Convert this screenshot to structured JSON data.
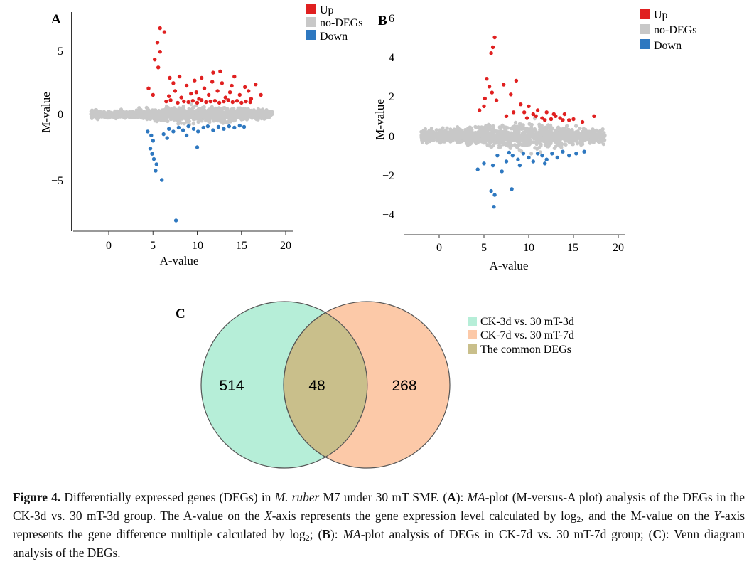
{
  "colors": {
    "up": "#e02020",
    "nodeg": "#c8c8c8",
    "down": "#2e78c0",
    "venn_a": "#b6eed8",
    "venn_b": "#fcc9a8",
    "venn_common": "#c9bf8b"
  },
  "chart_data": [
    {
      "type": "scatter",
      "panel": "A",
      "xlabel": "A-value",
      "ylabel": "M-value",
      "xlim": [
        -4,
        20
      ],
      "ylim": [
        -9,
        8
      ],
      "xticks": [
        "0",
        "5",
        "10",
        "15",
        "20"
      ],
      "yticks": [
        "5",
        "0",
        "−5"
      ],
      "legend": [
        "Up",
        "no-DEGs",
        "Down"
      ],
      "legend_position": "top-right",
      "series": [
        {
          "name": "Up",
          "points": [
            [
              5.8,
              6.6
            ],
            [
              6.3,
              6.3
            ],
            [
              5.5,
              5.5
            ],
            [
              5.8,
              4.8
            ],
            [
              5.2,
              4.2
            ],
            [
              5.6,
              3.6
            ],
            [
              4.5,
              2.0
            ],
            [
              5.0,
              1.5
            ],
            [
              6.8,
              1.4
            ],
            [
              7.5,
              1.8
            ],
            [
              8.2,
              1.3
            ],
            [
              8.8,
              2.2
            ],
            [
              9.3,
              1.6
            ],
            [
              9.7,
              2.6
            ],
            [
              10.2,
              1.2
            ],
            [
              10.8,
              2.0
            ],
            [
              11.3,
              1.5
            ],
            [
              11.8,
              3.2
            ],
            [
              12.3,
              1.8
            ],
            [
              12.8,
              2.4
            ],
            [
              13.2,
              1.3
            ],
            [
              13.7,
              1.7
            ],
            [
              14.2,
              2.9
            ],
            [
              14.8,
              1.5
            ],
            [
              15.4,
              2.1
            ],
            [
              16.1,
              1.2
            ],
            [
              16.6,
              2.3
            ],
            [
              17.2,
              1.5
            ],
            [
              6.5,
              1.0
            ],
            [
              7.0,
              1.1
            ],
            [
              7.8,
              0.9
            ],
            [
              8.5,
              1.0
            ],
            [
              9.0,
              0.95
            ],
            [
              9.5,
              1.05
            ],
            [
              10.0,
              0.9
            ],
            [
              10.5,
              1.1
            ],
            [
              11.0,
              0.95
            ],
            [
              11.5,
              1.0
            ],
            [
              12.0,
              1.05
            ],
            [
              12.5,
              0.9
            ],
            [
              13.0,
              1.0
            ],
            [
              13.5,
              1.1
            ],
            [
              14.0,
              0.95
            ],
            [
              14.5,
              1.05
            ],
            [
              15.0,
              0.9
            ],
            [
              15.5,
              1.0
            ],
            [
              16.0,
              0.95
            ],
            [
              8.0,
              2.9
            ],
            [
              10.5,
              2.8
            ],
            [
              12.6,
              3.3
            ],
            [
              9.9,
              1.7
            ],
            [
              11.7,
              2.5
            ],
            [
              7.3,
              2.4
            ],
            [
              13.9,
              2.2
            ],
            [
              15.8,
              1.8
            ],
            [
              6.9,
              2.8
            ]
          ]
        },
        {
          "name": "Down",
          "points": [
            [
              4.4,
              -1.3
            ],
            [
              4.8,
              -1.6
            ],
            [
              5.0,
              -2.0
            ],
            [
              4.7,
              -2.6
            ],
            [
              4.9,
              -3.0
            ],
            [
              5.1,
              -3.4
            ],
            [
              5.4,
              -3.8
            ],
            [
              5.3,
              -4.3
            ],
            [
              6.0,
              -5.0
            ],
            [
              7.6,
              -8.1
            ],
            [
              6.2,
              -1.5
            ],
            [
              6.8,
              -1.1
            ],
            [
              7.3,
              -1.3
            ],
            [
              7.9,
              -1.0
            ],
            [
              8.4,
              -1.2
            ],
            [
              9.0,
              -0.9
            ],
            [
              9.6,
              -1.1
            ],
            [
              10.1,
              -1.3
            ],
            [
              10.7,
              -1.0
            ],
            [
              11.2,
              -0.9
            ],
            [
              11.8,
              -1.2
            ],
            [
              12.4,
              -0.95
            ],
            [
              13.0,
              -1.1
            ],
            [
              13.6,
              -0.9
            ],
            [
              14.2,
              -1.0
            ],
            [
              14.8,
              -0.85
            ],
            [
              15.3,
              -0.95
            ],
            [
              10.0,
              -2.5
            ],
            [
              8.8,
              -1.6
            ],
            [
              6.6,
              -1.8
            ]
          ]
        }
      ]
    },
    {
      "type": "scatter",
      "panel": "B",
      "xlabel": "A-value",
      "ylabel": "M-value",
      "xlim": [
        -4,
        20
      ],
      "ylim": [
        -5,
        6
      ],
      "xticks": [
        "0",
        "5",
        "10",
        "15",
        "20"
      ],
      "yticks": [
        "6",
        "4",
        "2",
        "0",
        "−2",
        "−4"
      ],
      "legend": [
        "Up",
        "no-DEGs",
        "Down"
      ],
      "legend_position": "top-right",
      "series": [
        {
          "name": "Up",
          "points": [
            [
              6.2,
              5.0
            ],
            [
              6.0,
              4.5
            ],
            [
              5.8,
              4.2
            ],
            [
              5.3,
              2.9
            ],
            [
              5.6,
              2.5
            ],
            [
              5.9,
              2.2
            ],
            [
              5.1,
              1.9
            ],
            [
              6.4,
              1.8
            ],
            [
              7.2,
              2.6
            ],
            [
              8.0,
              2.1
            ],
            [
              8.6,
              2.8
            ],
            [
              9.1,
              1.6
            ],
            [
              9.5,
              1.2
            ],
            [
              10.0,
              1.5
            ],
            [
              10.5,
              1.1
            ],
            [
              11.0,
              1.3
            ],
            [
              11.5,
              0.9
            ],
            [
              12.0,
              1.2
            ],
            [
              12.5,
              0.85
            ],
            [
              13.0,
              1.0
            ],
            [
              13.5,
              0.9
            ],
            [
              14.0,
              1.1
            ],
            [
              14.5,
              0.8
            ],
            [
              15.0,
              0.85
            ],
            [
              16.0,
              0.7
            ],
            [
              17.3,
              1.0
            ],
            [
              4.5,
              1.3
            ],
            [
              5.0,
              1.5
            ],
            [
              7.5,
              1.0
            ],
            [
              8.3,
              1.2
            ],
            [
              9.8,
              0.9
            ],
            [
              10.8,
              1.0
            ],
            [
              11.8,
              0.8
            ],
            [
              12.8,
              1.1
            ],
            [
              13.8,
              0.8
            ]
          ]
        },
        {
          "name": "Down",
          "points": [
            [
              5.8,
              -2.8
            ],
            [
              6.2,
              -3.0
            ],
            [
              6.1,
              -3.6
            ],
            [
              8.1,
              -2.7
            ],
            [
              4.3,
              -1.7
            ],
            [
              5.0,
              -1.4
            ],
            [
              6.0,
              -1.5
            ],
            [
              7.0,
              -1.8
            ],
            [
              7.5,
              -1.3
            ],
            [
              8.2,
              -1.0
            ],
            [
              8.8,
              -1.2
            ],
            [
              9.4,
              -0.9
            ],
            [
              10.0,
              -1.1
            ],
            [
              10.5,
              -1.3
            ],
            [
              11.0,
              -0.9
            ],
            [
              11.5,
              -1.0
            ],
            [
              12.0,
              -1.2
            ],
            [
              12.6,
              -0.9
            ],
            [
              13.2,
              -1.1
            ],
            [
              13.8,
              -0.8
            ],
            [
              14.5,
              -1.0
            ],
            [
              15.3,
              -0.9
            ],
            [
              16.2,
              -0.8
            ],
            [
              9.0,
              -1.5
            ],
            [
              11.8,
              -1.4
            ],
            [
              6.5,
              -1.0
            ],
            [
              7.8,
              -0.85
            ]
          ]
        }
      ]
    },
    {
      "type": "venn",
      "panel": "C",
      "sets": [
        {
          "label": "CK-3d vs. 30 mT-3d",
          "only": "514"
        },
        {
          "label": "CK-7d vs. 30 mT-7d",
          "only": "268"
        }
      ],
      "common_label": "The common DEGs",
      "common": "48",
      "legend_position": "right"
    }
  ],
  "caption": {
    "label": "Figure 4.",
    "s1": " Differentially expressed genes (DEGs) in ",
    "species": "M. ruber",
    "s2": " M7 under 30 mT SMF. (",
    "A": "A",
    "s3": "): ",
    "MA1": "MA",
    "s4": "-plot (M-versus-A plot) analysis of the DEGs in the CK-3d vs. 30 mT-3d group. The A-value on the ",
    "X": "X",
    "s5": "-axis represents the gene expression level calculated by log",
    "sub1": "2",
    "s6": ", and the M-value on the ",
    "Y": "Y",
    "s7": "-axis represents the gene difference multiple calculated by log",
    "sub2": "2",
    "s8": "; (",
    "B": "B",
    "s9": "): ",
    "MA2": "MA",
    "s10": "-plot analysis of DEGs in CK-7d vs. 30 mT-7d group; (",
    "C": "C",
    "s11": "): Venn diagram analysis of the DEGs."
  }
}
